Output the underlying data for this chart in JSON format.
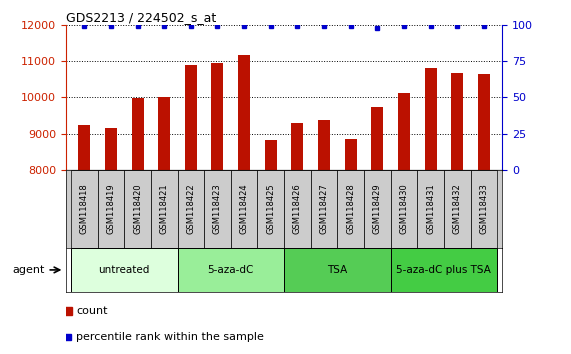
{
  "title": "GDS2213 / 224502_s_at",
  "samples": [
    "GSM118418",
    "GSM118419",
    "GSM118420",
    "GSM118421",
    "GSM118422",
    "GSM118423",
    "GSM118424",
    "GSM118425",
    "GSM118426",
    "GSM118427",
    "GSM118428",
    "GSM118429",
    "GSM118430",
    "GSM118431",
    "GSM118432",
    "GSM118433"
  ],
  "counts": [
    9250,
    9150,
    9980,
    10000,
    10900,
    10960,
    11170,
    8830,
    9300,
    9380,
    8840,
    9740,
    10120,
    10800,
    10680,
    10640
  ],
  "percentile_ranks": [
    99,
    99,
    99,
    99,
    99,
    99,
    99,
    99,
    99,
    99,
    99,
    98,
    99,
    99,
    99,
    99
  ],
  "bar_color": "#bb1100",
  "dot_color": "#0000cc",
  "ylim_left": [
    8000,
    12000
  ],
  "ylim_right": [
    0,
    100
  ],
  "yticks_left": [
    8000,
    9000,
    10000,
    11000,
    12000
  ],
  "yticks_right": [
    0,
    25,
    50,
    75,
    100
  ],
  "groups": [
    {
      "label": "untreated",
      "start": 0,
      "end": 3,
      "color": "#ddffdd"
    },
    {
      "label": "5-aza-dC",
      "start": 4,
      "end": 7,
      "color": "#99ee99"
    },
    {
      "label": "TSA",
      "start": 8,
      "end": 11,
      "color": "#55cc55"
    },
    {
      "label": "5-aza-dC plus TSA",
      "start": 12,
      "end": 15,
      "color": "#44cc44"
    }
  ],
  "agent_label": "agent",
  "legend_count_label": "count",
  "legend_percentile_label": "percentile rank within the sample",
  "plot_bg_color": "#ffffff",
  "tick_bg_color": "#cccccc",
  "ylabel_left_color": "#cc2200",
  "ylabel_right_color": "#0000cc",
  "bar_width": 0.45
}
